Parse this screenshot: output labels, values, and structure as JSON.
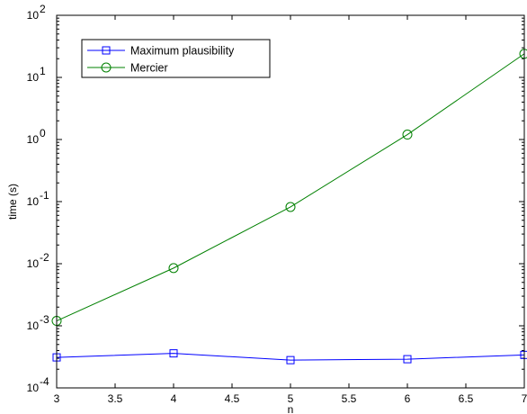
{
  "chart_data": {
    "type": "line",
    "title": "",
    "xlabel": "n",
    "ylabel": "time (s)",
    "xlim": [
      3,
      7
    ],
    "ylim": [
      0.0001,
      100
    ],
    "yscale": "log",
    "x_ticks": [
      3,
      3.5,
      4,
      4.5,
      5,
      5.5,
      6,
      6.5,
      7
    ],
    "x_tick_labels": [
      "3",
      "3.5",
      "4",
      "4.5",
      "5",
      "5.5",
      "6",
      "6.5",
      "7"
    ],
    "y_ticks": [
      0.0001,
      0.001,
      0.01,
      0.1,
      1,
      10,
      100
    ],
    "y_tick_labels": [
      {
        "base": "10",
        "exp": "-4"
      },
      {
        "base": "10",
        "exp": "-3"
      },
      {
        "base": "10",
        "exp": "-2"
      },
      {
        "base": "10",
        "exp": "-1"
      },
      {
        "base": "10",
        "exp": "0"
      },
      {
        "base": "10",
        "exp": "1"
      },
      {
        "base": "10",
        "exp": "2"
      }
    ],
    "grid": false,
    "legend_position": "top-left",
    "series": [
      {
        "name": "Maximum plausibility",
        "color": "#0000ff",
        "marker": "square",
        "x": [
          3,
          4,
          5,
          6,
          7
        ],
        "y": [
          0.00031,
          0.00036,
          0.00028,
          0.00029,
          0.00034
        ]
      },
      {
        "name": "Mercier",
        "color": "#008000",
        "marker": "circle",
        "x": [
          3,
          4,
          5,
          6,
          7
        ],
        "y": [
          0.0012,
          0.0085,
          0.082,
          1.2,
          24
        ]
      }
    ]
  }
}
